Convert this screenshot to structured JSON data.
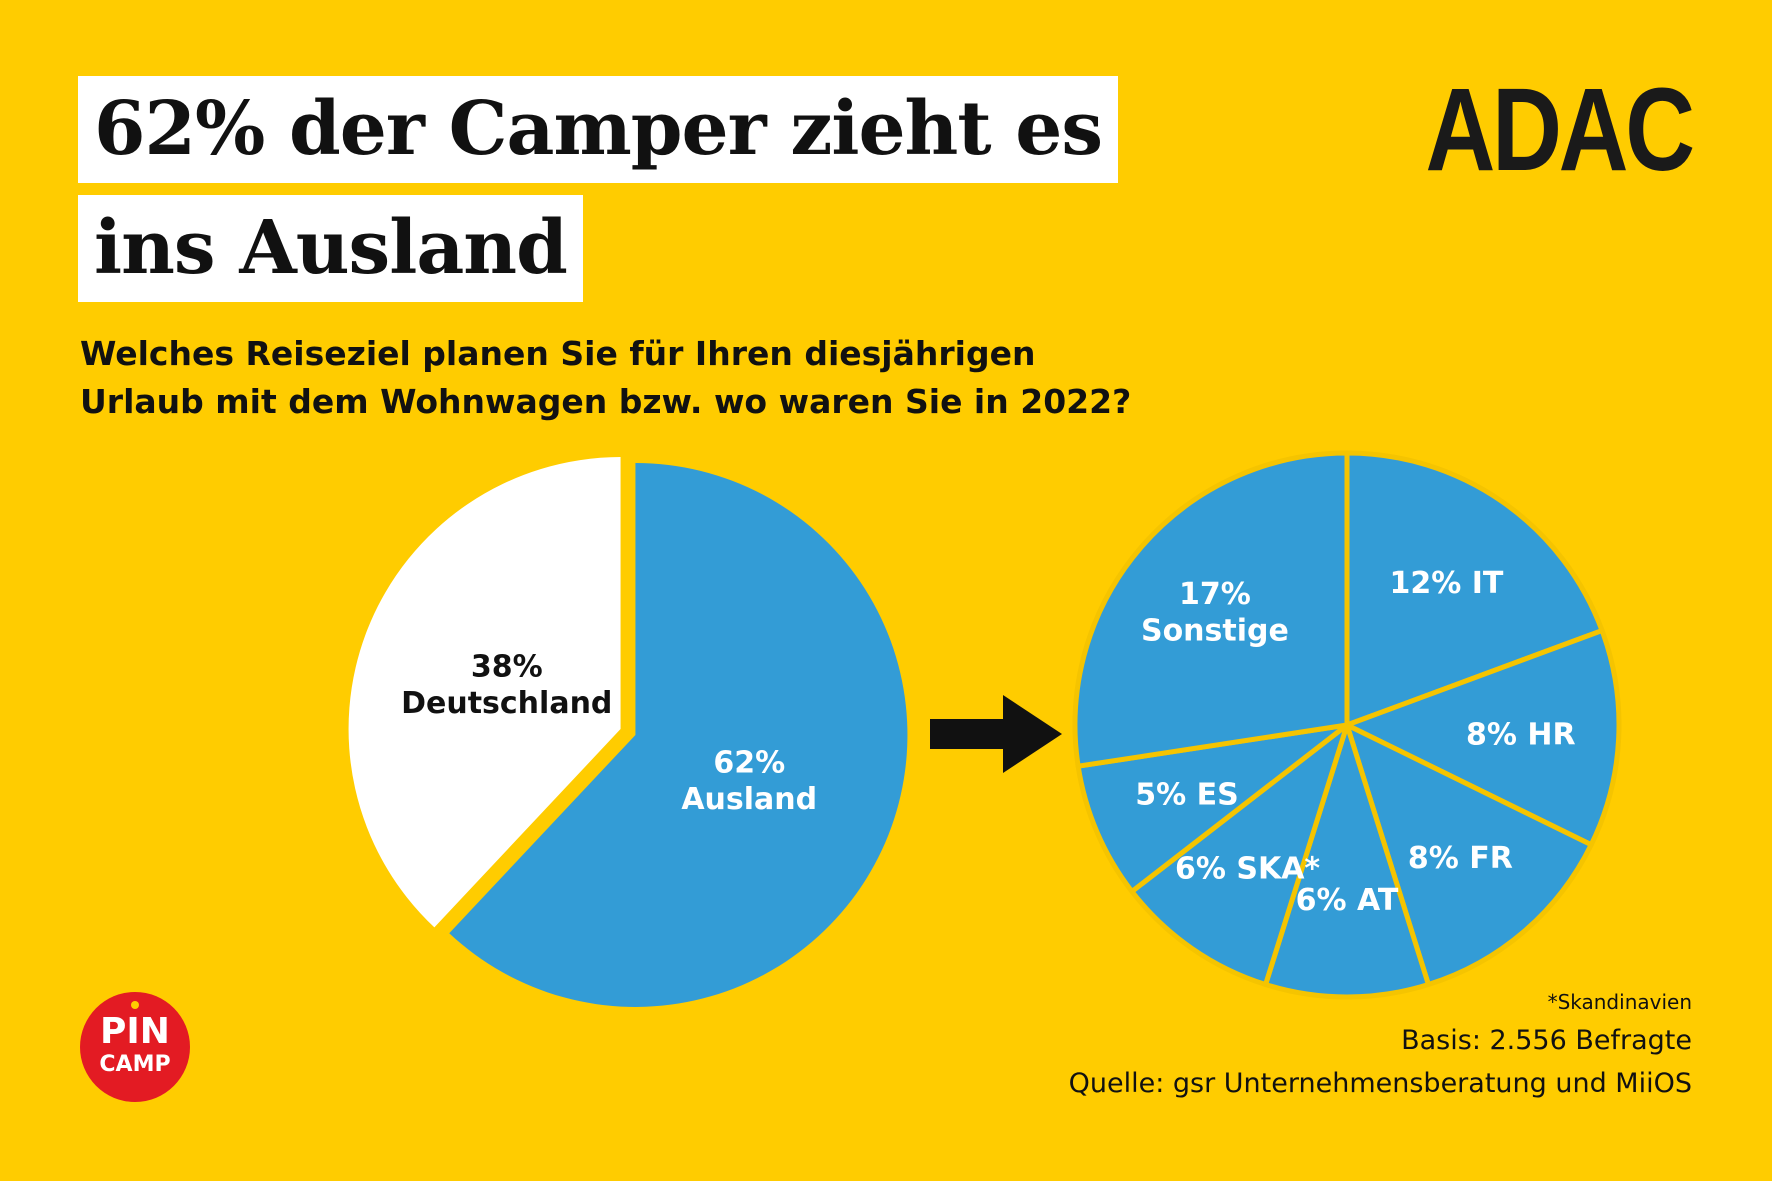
{
  "title": {
    "line1": "62% der Camper zieht es",
    "line2": "ins Ausland"
  },
  "brand": {
    "logo": "ADAC",
    "badge_line1": "PIN",
    "badge_line2": "CAMP"
  },
  "question": "Welches Reiseziel planen Sie für Ihren diesjährigen Urlaub mit dem Wohnwagen bzw. wo waren Sie in 2022?",
  "colors": {
    "background": "#ffcc00",
    "slice_blue": "#339cd6",
    "slice_white": "#ffffff",
    "separator": "#f5c400",
    "arrow": "#111111"
  },
  "chart_data": [
    {
      "type": "pie",
      "slices": [
        {
          "label": "Ausland",
          "value": 62,
          "display": [
            "62%",
            "Ausland"
          ],
          "color": "#339cd6"
        },
        {
          "label": "Deutschland",
          "value": 38,
          "display": [
            "38%",
            "Deutschland"
          ],
          "color": "#ffffff"
        }
      ]
    },
    {
      "type": "pie",
      "slices": [
        {
          "label": "IT",
          "value": 12,
          "display": [
            "12% IT"
          ]
        },
        {
          "label": "HR",
          "value": 8,
          "display": [
            "8% HR"
          ]
        },
        {
          "label": "FR",
          "value": 8,
          "display": [
            "8% FR"
          ]
        },
        {
          "label": "AT",
          "value": 6,
          "display": [
            "6% AT"
          ]
        },
        {
          "label": "SKA*",
          "value": 6,
          "display": [
            "6% SKA*"
          ]
        },
        {
          "label": "ES",
          "value": 5,
          "display": [
            "5% ES"
          ]
        },
        {
          "label": "Sonstige",
          "value": 17,
          "display": [
            "17%",
            "Sonstige"
          ]
        }
      ]
    }
  ],
  "footnotes": {
    "star": "*Skandinavien",
    "basis": "Basis: 2.556 Befragte",
    "source": "Quelle: gsr Unternehmensberatung und MiiOS"
  }
}
